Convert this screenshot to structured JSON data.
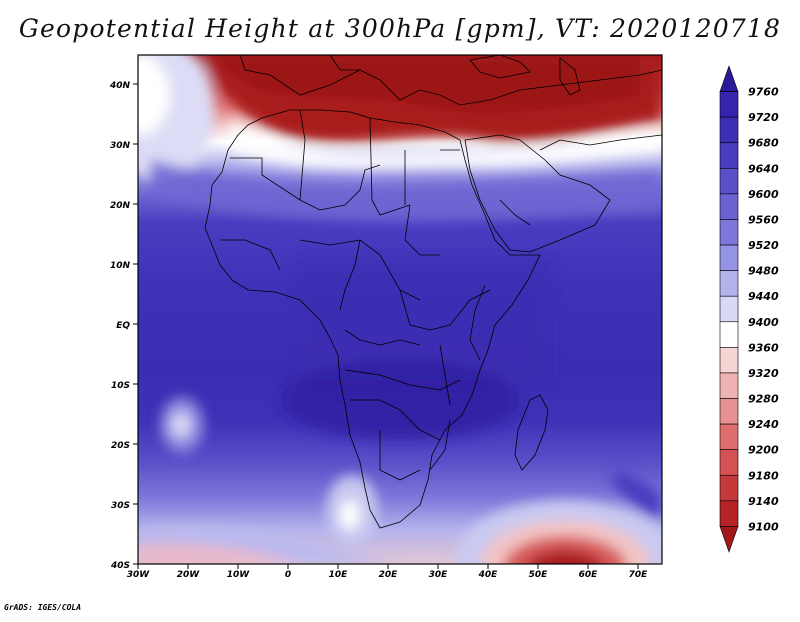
{
  "title": "Geopotential Height at 300hPa [gpm], VT: 2020120718",
  "footer": "GrADS: IGES/COLA",
  "map": {
    "extent": {
      "lon_min": -30,
      "lon_max": 75,
      "lat_min": -40,
      "lat_max": 45
    },
    "lat_labels": [
      "40N",
      "30N",
      "20N",
      "10N",
      "EQ",
      "10S",
      "20S",
      "30S",
      "40S"
    ],
    "lat_values": [
      40,
      30,
      20,
      10,
      0,
      -10,
      -20,
      -30,
      -40
    ],
    "lon_labels": [
      "30W",
      "20W",
      "10W",
      "0",
      "10E",
      "20E",
      "30E",
      "40E",
      "50E",
      "60E",
      "70E"
    ],
    "lon_values": [
      -30,
      -20,
      -10,
      0,
      10,
      20,
      30,
      40,
      50,
      60,
      70
    ],
    "field": "Geopotential Height",
    "level": "300hPa",
    "units": "gpm"
  },
  "colorbar": {
    "levels": [
      "9760",
      "9720",
      "9680",
      "9640",
      "9600",
      "9560",
      "9520",
      "9480",
      "9440",
      "9400",
      "9360",
      "9320",
      "9280",
      "9240",
      "9200",
      "9180",
      "9140",
      "9100"
    ],
    "colors": [
      "#2a1a9a",
      "#3524ad",
      "#3c2fb5",
      "#4a3dc0",
      "#5a50c9",
      "#6a63d1",
      "#7d78da",
      "#9593e3",
      "#b2b2ec",
      "#d9d9f6",
      "#ffffff",
      "#f6d4d4",
      "#efb3b3",
      "#e79191",
      "#de6e6e",
      "#d45252",
      "#c43a3a",
      "#b42424",
      "#a21818"
    ]
  },
  "legend_note": "colors ordered top (high) to bottom (low)"
}
